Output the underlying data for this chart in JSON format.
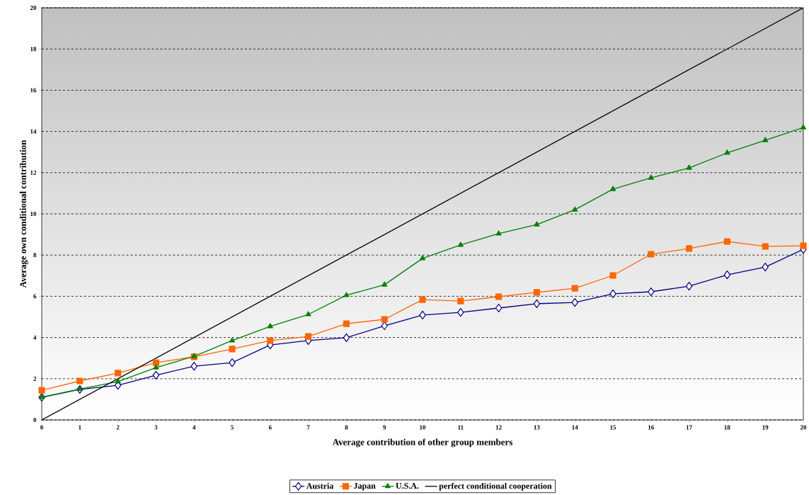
{
  "chart_data": {
    "type": "line",
    "xlabel": "Average contribution of other group members",
    "ylabel": "Average own conditional contribution",
    "x": [
      0,
      1,
      2,
      3,
      4,
      5,
      6,
      7,
      8,
      9,
      10,
      11,
      12,
      13,
      14,
      15,
      16,
      17,
      18,
      19,
      20
    ],
    "series": [
      {
        "name": "Austria",
        "color": "#000080",
        "marker": "diamond",
        "values": [
          1.1,
          1.48,
          1.68,
          2.17,
          2.61,
          2.78,
          3.64,
          3.85,
          3.99,
          4.57,
          5.09,
          5.22,
          5.43,
          5.64,
          5.7,
          6.12,
          6.22,
          6.49,
          7.04,
          7.42,
          8.28
        ]
      },
      {
        "name": "Japan",
        "color": "#ff6600",
        "marker": "square",
        "values": [
          1.44,
          1.89,
          2.27,
          2.78,
          3.06,
          3.44,
          3.85,
          4.05,
          4.67,
          4.88,
          5.84,
          5.77,
          5.98,
          6.19,
          6.39,
          7.01,
          8.04,
          8.32,
          8.66,
          8.42,
          8.45
        ]
      },
      {
        "name": "U.S.A.",
        "color": "#008000",
        "marker": "triangle",
        "values": [
          1.1,
          1.5,
          1.86,
          2.54,
          3.09,
          3.85,
          4.54,
          5.12,
          6.05,
          6.56,
          7.84,
          8.49,
          9.04,
          9.48,
          10.2,
          11.2,
          11.75,
          12.23,
          12.96,
          13.57,
          14.19
        ]
      },
      {
        "name": "perfect conditional cooperation",
        "color": "#000000",
        "marker": "none",
        "x": [
          0,
          20
        ],
        "values": [
          0,
          20
        ]
      }
    ],
    "xlim": [
      0,
      20
    ],
    "xticks": [
      0,
      1,
      2,
      3,
      4,
      5,
      6,
      7,
      8,
      9,
      10,
      11,
      12,
      13,
      14,
      15,
      16,
      17,
      18,
      19,
      20
    ],
    "ylim": [
      0,
      20
    ],
    "yticks": [
      0,
      2,
      4,
      6,
      8,
      10,
      12,
      14,
      16,
      18,
      20
    ],
    "grid": "y",
    "legend": "bottom",
    "line_style": "solid"
  }
}
